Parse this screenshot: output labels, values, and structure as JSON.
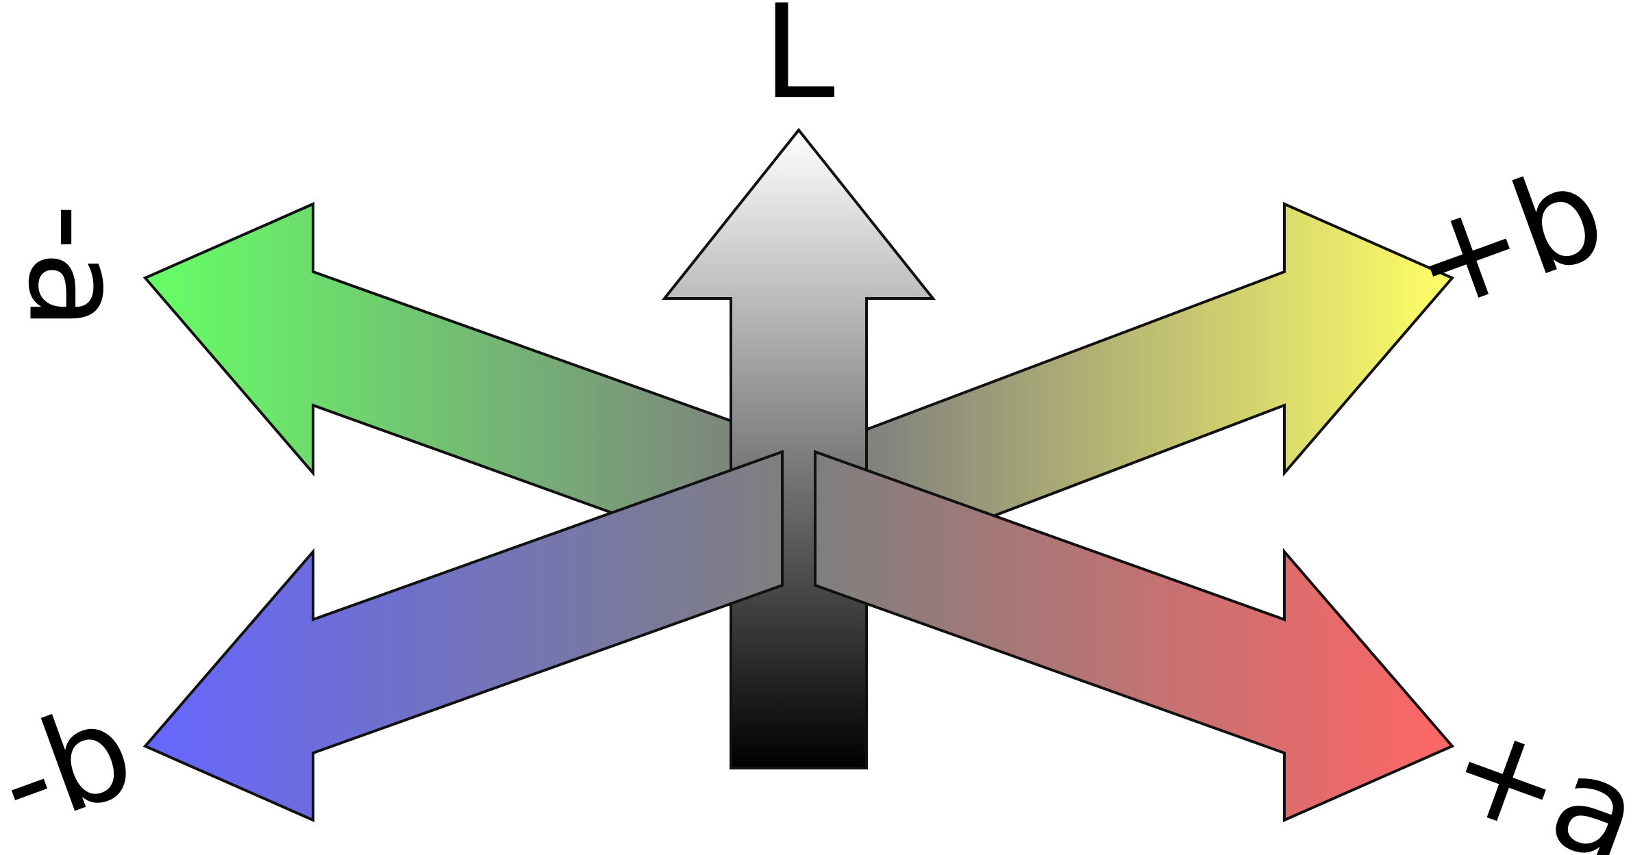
{
  "labels": {
    "l": "L",
    "neg_a": "-a",
    "pos_a": "+a",
    "neg_b": "-b",
    "pos_b": "+b"
  },
  "colors": {
    "green": "#66ff66",
    "yellow": "#ffff66",
    "blue": "#6666ff",
    "red": "#ff6666",
    "white": "#ffffff",
    "black": "#000000",
    "center_gray": "#7f7f7f"
  }
}
